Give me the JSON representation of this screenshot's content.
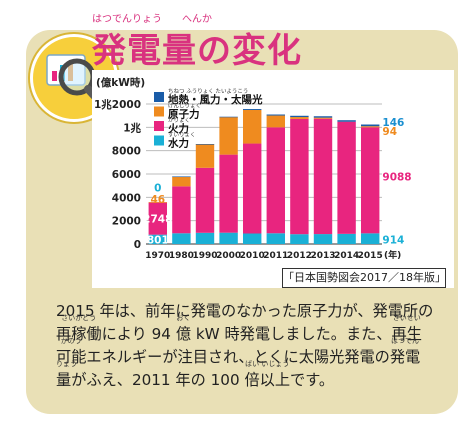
{
  "title": "発電量の変化",
  "title_ruby": "はつでんりょう　　へんか",
  "source": "「日本国勢図会2017／18年版」",
  "body": {
    "line1": "2015 年は、前年に発電のなかった原子力が、発電所の",
    "line2_a": "",
    "line2_w1": "再稼働",
    "line2_r1": "さいかどう",
    "line2_b": "により 94 ",
    "line2_w2": "億",
    "line2_r2": "おく",
    "line2_c": " kW 時発電しました。また、",
    "line2_w3": "再生",
    "line2_r3": "さいせい",
    "line3_w1": "可能",
    "line3_r1": "かのう",
    "line3_a": "エネルギーが注目され、とくに太陽光発電の",
    "line3_w2": "発電",
    "line3_r2": "はつでん",
    "line4_w1": "量",
    "line4_r1": "りょう",
    "line4_a": "がふえ、2011 年の 100 ",
    "line4_w2": "倍以上",
    "line4_r2": "ばい いじょう",
    "line4_b": "です。"
  },
  "chart_data": {
    "type": "bar",
    "stacked": true,
    "ylabel": "(億kW時)",
    "ylim": [
      0,
      12000
    ],
    "yticks": [
      {
        "value": 0,
        "label": "0"
      },
      {
        "value": 2000,
        "label": "2000"
      },
      {
        "value": 4000,
        "label": "4000"
      },
      {
        "value": 6000,
        "label": "6000"
      },
      {
        "value": 8000,
        "label": "8000"
      },
      {
        "value": 10000,
        "label": "1兆"
      },
      {
        "value": 12000,
        "label": "1兆2000"
      }
    ],
    "xunit": "(年)",
    "categories": [
      "1970",
      "1980",
      "1990",
      "2000",
      "2010",
      "2011",
      "2012",
      "2013",
      "2014",
      "2015"
    ],
    "series": [
      {
        "name": "水力",
        "ruby": "すいりょく",
        "color": "#1ab0d6",
        "values": [
          801,
          920,
          960,
          970,
          900,
          920,
          840,
          850,
          870,
          914
        ]
      },
      {
        "name": "火力",
        "ruby": "かりょく",
        "color": "#e8257f",
        "values": [
          2748,
          4020,
          5570,
          6690,
          7710,
          9080,
          9880,
          9890,
          9610,
          9088
        ]
      },
      {
        "name": "原子力",
        "ruby": "げんしりょく",
        "color": "#ef8b1f",
        "values": [
          46,
          830,
          2020,
          3220,
          2880,
          1010,
          160,
          90,
          0,
          94
        ]
      },
      {
        "name": "地熱・風力・太陽光",
        "ruby": "ちねつ ふうりょく たいようこう",
        "color": "#1a5ca8",
        "values": [
          0,
          20,
          20,
          30,
          80,
          90,
          110,
          120,
          130,
          146
        ]
      }
    ],
    "data_labels": [
      {
        "text": "801",
        "color": "#ffffff"
      },
      {
        "text": "2748",
        "color": "#ffffff"
      },
      {
        "text": "46",
        "color": "#ef8b1f"
      },
      {
        "text": "0",
        "color": "#1ab0d6"
      },
      {
        "text": "146",
        "color": "#1a8fd0"
      },
      {
        "text": "94",
        "color": "#ef8b1f"
      },
      {
        "text": "9088",
        "color": "#e8257f"
      },
      {
        "text": "914",
        "color": "#1ab0d6"
      }
    ],
    "legend_position": "top-left"
  }
}
